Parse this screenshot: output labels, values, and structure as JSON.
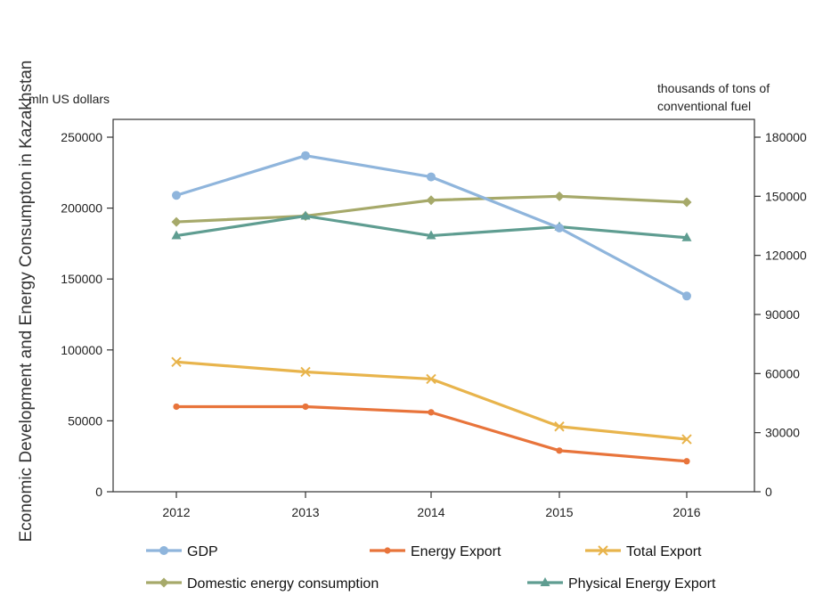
{
  "chart_data": {
    "type": "line",
    "title": "Economic Development  and Energy Consumpton in Kazakhstan",
    "left_axis_label": "mln US dollars",
    "right_axis_label_lines": [
      "thousands of tons of",
      "conventional fuel"
    ],
    "categories": [
      "2012",
      "2013",
      "2014",
      "2015",
      "2016"
    ],
    "ylim_left": [
      0,
      250000
    ],
    "yticks_left": [
      "0",
      "50000",
      "100000",
      "150000",
      "200000",
      "250000"
    ],
    "ylim_right": [
      0,
      180000
    ],
    "yticks_right": [
      "0",
      "30000",
      "60000",
      "90000",
      "120000",
      "150000",
      "180000"
    ],
    "grid": false,
    "legend_position": "bottom",
    "series": [
      {
        "name": "GDP",
        "axis": "left",
        "marker": "circle",
        "color": "#8fb5dc",
        "values": [
          209000,
          237000,
          222000,
          186000,
          138000
        ]
      },
      {
        "name": "Energy Export",
        "axis": "left",
        "marker": "dot",
        "color": "#e8743b",
        "values": [
          60000,
          60000,
          56000,
          29000,
          21500
        ]
      },
      {
        "name": "Total Export",
        "axis": "left",
        "marker": "x",
        "color": "#e8b44c",
        "values": [
          91500,
          84500,
          79500,
          46000,
          37000
        ]
      },
      {
        "name": "Domestic energy consumption",
        "axis": "right",
        "marker": "diamond",
        "color": "#a6a96a",
        "values": [
          137000,
          140000,
          148000,
          150000,
          147000
        ]
      },
      {
        "name": "Physical Energy Export",
        "axis": "right",
        "marker": "triangle",
        "color": "#5f9d91",
        "values": [
          130000,
          140000,
          130000,
          134500,
          129000
        ]
      }
    ]
  }
}
